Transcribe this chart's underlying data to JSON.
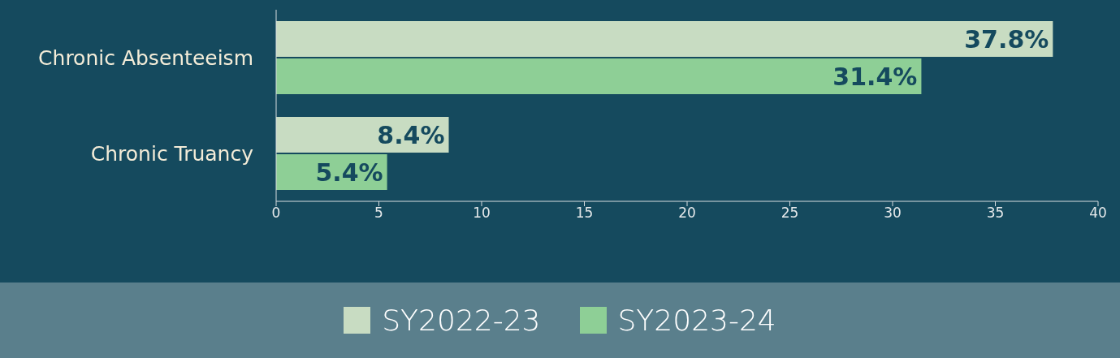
{
  "chart_data": {
    "type": "bar",
    "orientation": "horizontal",
    "categories": [
      "Chronic Absenteeism",
      "Chronic Truancy"
    ],
    "series": [
      {
        "name": "SY2022-23",
        "color": "#c8dcc2",
        "values": [
          37.8,
          8.4
        ],
        "value_labels": [
          "37.8%",
          "8.4%"
        ]
      },
      {
        "name": "SY2023-24",
        "color": "#8ecf96",
        "values": [
          31.4,
          5.4
        ],
        "value_labels": [
          "31.4%",
          "5.4%"
        ]
      }
    ],
    "xlim": [
      0,
      40
    ],
    "xticks": [
      0,
      5,
      10,
      15,
      20,
      25,
      30,
      35,
      40
    ],
    "grid": false,
    "legend": "bottom"
  }
}
